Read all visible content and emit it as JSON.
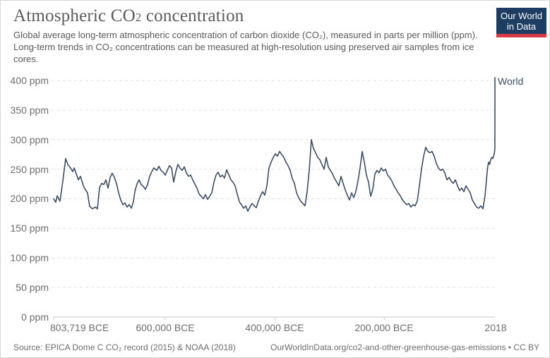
{
  "header": {
    "title": {
      "pre": "Atmospheric CO",
      "sub": "2",
      "post": " concentration"
    },
    "subtitle": "Global average long-term atmospheric concentration of carbon dioxide (CO₂), measured in parts per million (ppm). Long-term trends in CO₂ concentrations can be measured at high-resolution using preserved air samples from ice cores.",
    "logo": {
      "line1": "Our World",
      "line2": "in Data"
    }
  },
  "footer": {
    "source": "Source: EPICA Dome C CO₂ record (2015) & NOAA (2018)",
    "link": "OurWorldInData.org/co2-and-other-greenhouse-gas-emissions • CC BY"
  },
  "colors": {
    "line": "#3d4e63",
    "grid": "#e2e2e2",
    "axis": "#c8c8c8",
    "logo_navy": "#1d3d63",
    "logo_red": "#d93a46",
    "tick_text": "#6e6e6e"
  },
  "chart_data": {
    "type": "line",
    "title": "Atmospheric CO₂ concentration",
    "xlabel": "",
    "ylabel": "ppm",
    "unit": "ppm",
    "grid": true,
    "legend_position": "end-of-line-label",
    "x_range": [
      -803719,
      2018
    ],
    "y_range": [
      0,
      400
    ],
    "y_ticks": [
      {
        "label": "400 ppm",
        "value": 400
      },
      {
        "label": "350 ppm",
        "value": 350
      },
      {
        "label": "300 ppm",
        "value": 300
      },
      {
        "label": "250 ppm",
        "value": 250
      },
      {
        "label": "200 ppm",
        "value": 200
      },
      {
        "label": "150 ppm",
        "value": 150
      },
      {
        "label": "100 ppm",
        "value": 100
      },
      {
        "label": "50 ppm",
        "value": 50
      },
      {
        "label": "0 ppm",
        "value": 0
      }
    ],
    "x_ticks": [
      {
        "label": "803,719 BCE",
        "year": -803719
      },
      {
        "label": "600,000 BCE",
        "year": -600000
      },
      {
        "label": "400,000 BCE",
        "year": -400000
      },
      {
        "label": "200,000 BCE",
        "year": -200000
      },
      {
        "label": "2018",
        "year": 2018
      }
    ],
    "series": [
      {
        "name": "World",
        "color": "#3d4e63",
        "points": [
          [
            -803700,
            200
          ],
          [
            -799900,
            194
          ],
          [
            -797300,
            205
          ],
          [
            -792100,
            196
          ],
          [
            -787000,
            230
          ],
          [
            -781800,
            268
          ],
          [
            -777900,
            258
          ],
          [
            -772800,
            252
          ],
          [
            -768900,
            246
          ],
          [
            -766300,
            252
          ],
          [
            -762500,
            242
          ],
          [
            -758600,
            232
          ],
          [
            -754700,
            238
          ],
          [
            -749600,
            222
          ],
          [
            -745700,
            215
          ],
          [
            -741800,
            210
          ],
          [
            -738000,
            187
          ],
          [
            -732800,
            183
          ],
          [
            -727700,
            186
          ],
          [
            -723800,
            183
          ],
          [
            -719900,
            219
          ],
          [
            -716100,
            226
          ],
          [
            -712200,
            224
          ],
          [
            -708300,
            232
          ],
          [
            -704500,
            218
          ],
          [
            -700600,
            236
          ],
          [
            -696700,
            243
          ],
          [
            -692800,
            236
          ],
          [
            -689000,
            226
          ],
          [
            -685100,
            210
          ],
          [
            -681200,
            198
          ],
          [
            -677400,
            190
          ],
          [
            -673500,
            193
          ],
          [
            -669600,
            186
          ],
          [
            -665800,
            190
          ],
          [
            -661900,
            184
          ],
          [
            -658000,
            195
          ],
          [
            -655500,
            212
          ],
          [
            -651600,
            225
          ],
          [
            -647700,
            232
          ],
          [
            -643900,
            224
          ],
          [
            -640000,
            221
          ],
          [
            -636100,
            216
          ],
          [
            -632300,
            224
          ],
          [
            -628400,
            238
          ],
          [
            -624500,
            246
          ],
          [
            -620700,
            252
          ],
          [
            -615500,
            248
          ],
          [
            -611600,
            255
          ],
          [
            -607800,
            248
          ],
          [
            -603900,
            245
          ],
          [
            -600000,
            240
          ],
          [
            -596200,
            248
          ],
          [
            -592300,
            256
          ],
          [
            -588400,
            252
          ],
          [
            -584600,
            228
          ],
          [
            -580700,
            246
          ],
          [
            -576800,
            258
          ],
          [
            -573000,
            252
          ],
          [
            -569100,
            248
          ],
          [
            -565200,
            254
          ],
          [
            -561400,
            244
          ],
          [
            -557500,
            238
          ],
          [
            -553600,
            240
          ],
          [
            -549800,
            232
          ],
          [
            -545900,
            225
          ],
          [
            -542000,
            218
          ],
          [
            -538100,
            208
          ],
          [
            -534300,
            204
          ],
          [
            -530400,
            200
          ],
          [
            -526500,
            207
          ],
          [
            -522700,
            199
          ],
          [
            -518800,
            204
          ],
          [
            -514900,
            210
          ],
          [
            -511100,
            228
          ],
          [
            -507200,
            240
          ],
          [
            -503300,
            245
          ],
          [
            -499500,
            237
          ],
          [
            -495600,
            240
          ],
          [
            -491700,
            235
          ],
          [
            -487900,
            249
          ],
          [
            -484000,
            241
          ],
          [
            -480100,
            232
          ],
          [
            -476300,
            228
          ],
          [
            -472400,
            222
          ],
          [
            -468500,
            208
          ],
          [
            -464700,
            195
          ],
          [
            -460800,
            190
          ],
          [
            -456900,
            184
          ],
          [
            -453100,
            188
          ],
          [
            -449200,
            179
          ],
          [
            -445300,
            186
          ],
          [
            -441500,
            192
          ],
          [
            -437600,
            188
          ],
          [
            -433700,
            185
          ],
          [
            -429900,
            196
          ],
          [
            -426000,
            205
          ],
          [
            -422100,
            212
          ],
          [
            -418300,
            206
          ],
          [
            -414400,
            222
          ],
          [
            -410500,
            252
          ],
          [
            -406700,
            262
          ],
          [
            -402800,
            270
          ],
          [
            -398900,
            276
          ],
          [
            -395100,
            272
          ],
          [
            -391200,
            280
          ],
          [
            -387300,
            275
          ],
          [
            -383400,
            270
          ],
          [
            -379600,
            262
          ],
          [
            -375700,
            256
          ],
          [
            -371800,
            248
          ],
          [
            -368000,
            234
          ],
          [
            -364100,
            226
          ],
          [
            -360200,
            210
          ],
          [
            -356400,
            202
          ],
          [
            -352500,
            196
          ],
          [
            -348600,
            192
          ],
          [
            -344800,
            188
          ],
          [
            -340900,
            212
          ],
          [
            -337000,
            248
          ],
          [
            -333200,
            300
          ],
          [
            -329300,
            285
          ],
          [
            -325400,
            278
          ],
          [
            -321600,
            270
          ],
          [
            -317700,
            266
          ],
          [
            -313800,
            258
          ],
          [
            -310000,
            250
          ],
          [
            -306100,
            270
          ],
          [
            -302200,
            254
          ],
          [
            -298400,
            248
          ],
          [
            -294500,
            242
          ],
          [
            -290600,
            234
          ],
          [
            -286800,
            228
          ],
          [
            -282900,
            222
          ],
          [
            -279000,
            238
          ],
          [
            -275200,
            226
          ],
          [
            -271300,
            215
          ],
          [
            -267400,
            206
          ],
          [
            -263600,
            198
          ],
          [
            -259700,
            210
          ],
          [
            -255800,
            202
          ],
          [
            -252000,
            212
          ],
          [
            -248100,
            230
          ],
          [
            -244200,
            252
          ],
          [
            -240400,
            280
          ],
          [
            -236500,
            262
          ],
          [
            -232600,
            240
          ],
          [
            -228700,
            228
          ],
          [
            -224900,
            204
          ],
          [
            -221000,
            216
          ],
          [
            -217100,
            242
          ],
          [
            -213300,
            248
          ],
          [
            -209400,
            244
          ],
          [
            -205500,
            252
          ],
          [
            -201700,
            247
          ],
          [
            -197800,
            250
          ],
          [
            -193900,
            240
          ],
          [
            -190100,
            236
          ],
          [
            -186200,
            230
          ],
          [
            -182300,
            222
          ],
          [
            -178500,
            216
          ],
          [
            -174600,
            210
          ],
          [
            -170700,
            205
          ],
          [
            -166900,
            198
          ],
          [
            -163000,
            194
          ],
          [
            -159100,
            190
          ],
          [
            -155300,
            192
          ],
          [
            -151400,
            186
          ],
          [
            -147500,
            190
          ],
          [
            -143700,
            188
          ],
          [
            -139800,
            196
          ],
          [
            -135900,
            222
          ],
          [
            -132100,
            250
          ],
          [
            -128200,
            272
          ],
          [
            -124300,
            287
          ],
          [
            -120500,
            280
          ],
          [
            -116600,
            278
          ],
          [
            -112700,
            280
          ],
          [
            -108900,
            272
          ],
          [
            -105000,
            260
          ],
          [
            -101100,
            252
          ],
          [
            -97300,
            248
          ],
          [
            -93400,
            250
          ],
          [
            -89500,
            244
          ],
          [
            -85700,
            232
          ],
          [
            -81800,
            236
          ],
          [
            -77900,
            230
          ],
          [
            -74000,
            226
          ],
          [
            -70200,
            232
          ],
          [
            -66300,
            222
          ],
          [
            -62400,
            214
          ],
          [
            -58600,
            218
          ],
          [
            -54700,
            212
          ],
          [
            -50800,
            222
          ],
          [
            -47000,
            216
          ],
          [
            -43100,
            210
          ],
          [
            -39200,
            198
          ],
          [
            -35400,
            192
          ],
          [
            -31500,
            186
          ],
          [
            -27600,
            184
          ],
          [
            -23800,
            188
          ],
          [
            -19900,
            183
          ],
          [
            -16000,
            205
          ],
          [
            -13500,
            232
          ],
          [
            -11500,
            252
          ],
          [
            -9600,
            262
          ],
          [
            -7700,
            258
          ],
          [
            -5700,
            266
          ],
          [
            -3800,
            270
          ],
          [
            -1900,
            268
          ],
          [
            -600,
            272
          ],
          [
            700,
            276
          ],
          [
            1500,
            280
          ],
          [
            1850,
            286
          ],
          [
            1940,
            305
          ],
          [
            1975,
            332
          ],
          [
            1995,
            360
          ],
          [
            2008,
            385
          ],
          [
            2018,
            405
          ]
        ]
      }
    ]
  }
}
